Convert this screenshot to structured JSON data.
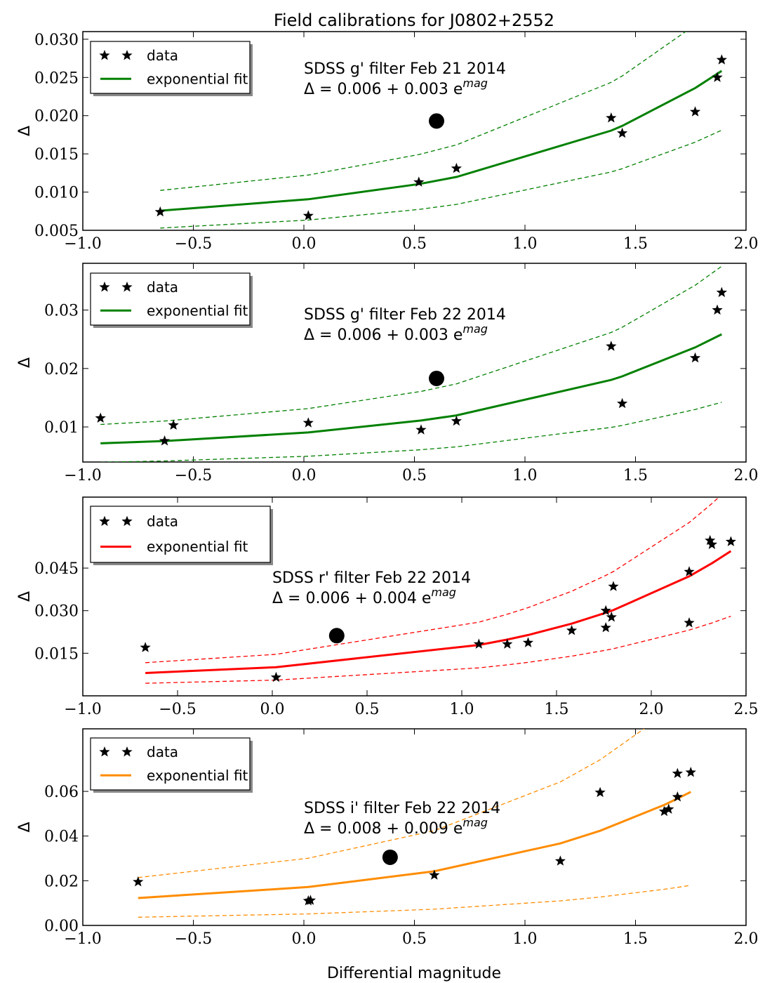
{
  "figure": {
    "title": "Field calibrations for J0802+2552",
    "xlabel": "Differential magnitude"
  },
  "chart_data": [
    {
      "type": "scatter",
      "ylabel": "Δ",
      "xlim": [
        -1.0,
        2.0
      ],
      "ylim": [
        0.005,
        0.031
      ],
      "xticks": [
        -1.0,
        -0.5,
        0.0,
        0.5,
        1.0,
        1.5,
        2.0
      ],
      "xticklabels": [
        "−1.0",
        "−0.5",
        "0.0",
        "0.5",
        "1.0",
        "1.5",
        "2.0"
      ],
      "yticks": [
        0.005,
        0.01,
        0.015,
        0.02,
        0.025,
        0.03
      ],
      "yticklabels": [
        "0.005",
        "0.010",
        "0.015",
        "0.020",
        "0.025",
        "0.030"
      ],
      "color": "#008000",
      "legend": {
        "data": "data",
        "fit": "exponential fit"
      },
      "annotation": {
        "line1": "SDSS g' filter Feb 21 2014",
        "eq_prefix": "Δ = 0.006 + 0.003 e",
        "eq_sup": "mag"
      },
      "data": [
        [
          -0.65,
          0.0074
        ],
        [
          0.02,
          0.0069
        ],
        [
          0.52,
          0.0113
        ],
        [
          0.69,
          0.0131
        ],
        [
          1.39,
          0.0197
        ],
        [
          1.44,
          0.0177
        ],
        [
          1.77,
          0.0205
        ],
        [
          1.87,
          0.025
        ],
        [
          1.89,
          0.0273
        ]
      ],
      "target": [
        0.6,
        0.0193
      ],
      "fit": {
        "a": 0.006,
        "b": 0.003,
        "band": [
          0.7,
          1.35
        ],
        "xs": [
          -0.65,
          0.02,
          0.52,
          0.69,
          1.39,
          1.44,
          1.77,
          1.89
        ]
      }
    },
    {
      "type": "scatter",
      "ylabel": "Δ",
      "xlim": [
        -1.0,
        2.0
      ],
      "ylim": [
        0.004,
        0.038
      ],
      "xticks": [
        -1.0,
        -0.5,
        0.0,
        0.5,
        1.0,
        1.5,
        2.0
      ],
      "xticklabels": [
        "−1.0",
        "−0.5",
        "0.0",
        "0.5",
        "1.0",
        "1.5",
        "2.0"
      ],
      "yticks": [
        0.01,
        0.02,
        0.03
      ],
      "yticklabels": [
        "0.01",
        "0.02",
        "0.03"
      ],
      "color": "#008000",
      "legend": {
        "data": "data",
        "fit": "exponential fit"
      },
      "annotation": {
        "line1": "SDSS g' filter Feb 22 2014",
        "eq_prefix": "Δ = 0.006 + 0.003 e",
        "eq_sup": "mag"
      },
      "data": [
        [
          -0.92,
          0.0115
        ],
        [
          -0.63,
          0.0076
        ],
        [
          -0.59,
          0.0103
        ],
        [
          0.02,
          0.0107
        ],
        [
          0.53,
          0.0095
        ],
        [
          0.69,
          0.011
        ],
        [
          1.39,
          0.0238
        ],
        [
          1.44,
          0.014
        ],
        [
          1.77,
          0.0218
        ],
        [
          1.87,
          0.03
        ],
        [
          1.89,
          0.033
        ]
      ],
      "target": [
        0.6,
        0.0183
      ],
      "fit": {
        "a": 0.006,
        "b": 0.003,
        "band": [
          0.55,
          1.45
        ],
        "xs": [
          -0.92,
          -0.63,
          0.02,
          0.53,
          0.69,
          1.39,
          1.44,
          1.77,
          1.89
        ]
      }
    },
    {
      "type": "scatter",
      "ylabel": "Δ",
      "xlim": [
        -1.0,
        2.5
      ],
      "ylim": [
        0.0,
        0.07
      ],
      "xticks": [
        -1.0,
        -0.5,
        0.0,
        0.5,
        1.0,
        1.5,
        2.0,
        2.5
      ],
      "xticklabels": [
        "−1.0",
        "−0.5",
        "0.0",
        "0.5",
        "1.0",
        "1.5",
        "2.0",
        "2.5"
      ],
      "yticks": [
        0.015,
        0.03,
        0.045
      ],
      "yticklabels": [
        "0.015",
        "0.030",
        "0.045"
      ],
      "color": "#ff0000",
      "legend": {
        "data": "data",
        "fit": "exponential fit"
      },
      "annotation": {
        "line1": "SDSS r' filter Feb 22 2014",
        "eq_prefix": "Δ = 0.006 + 0.004 e",
        "eq_sup": "mag"
      },
      "data": [
        [
          -0.67,
          0.017
        ],
        [
          0.02,
          0.0065
        ],
        [
          1.09,
          0.0182
        ],
        [
          1.24,
          0.0182
        ],
        [
          1.35,
          0.0187
        ],
        [
          1.58,
          0.023
        ],
        [
          1.76,
          0.03
        ],
        [
          1.76,
          0.024
        ],
        [
          1.79,
          0.0277
        ],
        [
          1.8,
          0.0385
        ],
        [
          2.2,
          0.0257
        ],
        [
          2.2,
          0.0437
        ],
        [
          2.31,
          0.0547
        ],
        [
          2.32,
          0.0533
        ],
        [
          2.42,
          0.0543
        ]
      ],
      "target": [
        0.34,
        0.0212
      ],
      "fit": {
        "a": 0.006,
        "b": 0.004,
        "band": [
          0.55,
          1.45
        ],
        "xs": [
          -0.67,
          0.02,
          1.09,
          1.24,
          1.35,
          1.58,
          1.76,
          1.8,
          2.2,
          2.32,
          2.42
        ]
      }
    },
    {
      "type": "scatter",
      "ylabel": "Δ",
      "xlim": [
        -1.0,
        2.0
      ],
      "ylim": [
        0.0,
        0.088
      ],
      "xticks": [
        -1.0,
        -0.5,
        0.0,
        0.5,
        1.0,
        1.5,
        2.0
      ],
      "xticklabels": [
        "−1.0",
        "−0.5",
        "0.0",
        "0.5",
        "1.0",
        "1.5",
        "2.0"
      ],
      "yticks": [
        0.0,
        0.02,
        0.04,
        0.06
      ],
      "yticklabels": [
        "0.00",
        "0.02",
        "0.04",
        "0.06"
      ],
      "color": "#ff8c00",
      "legend": {
        "data": "data",
        "fit": "exponential fit"
      },
      "annotation": {
        "line1": "SDSS i' filter Feb 22 2014",
        "eq_prefix": "Δ = 0.008 + 0.009 e",
        "eq_sup": "mag"
      },
      "data": [
        [
          -0.75,
          0.0195
        ],
        [
          0.02,
          0.011
        ],
        [
          0.03,
          0.0112
        ],
        [
          0.59,
          0.0225
        ],
        [
          1.16,
          0.0288
        ],
        [
          1.34,
          0.0595
        ],
        [
          1.63,
          0.051
        ],
        [
          1.65,
          0.052
        ],
        [
          1.69,
          0.0575
        ],
        [
          1.69,
          0.068
        ],
        [
          1.75,
          0.0685
        ]
      ],
      "target": [
        0.39,
        0.0305
      ],
      "fit": {
        "a": 0.008,
        "b": 0.009,
        "band": [
          0.3,
          1.75
        ],
        "xs": [
          -0.75,
          0.02,
          0.59,
          1.16,
          1.34,
          1.63,
          1.69,
          1.75
        ]
      }
    }
  ]
}
